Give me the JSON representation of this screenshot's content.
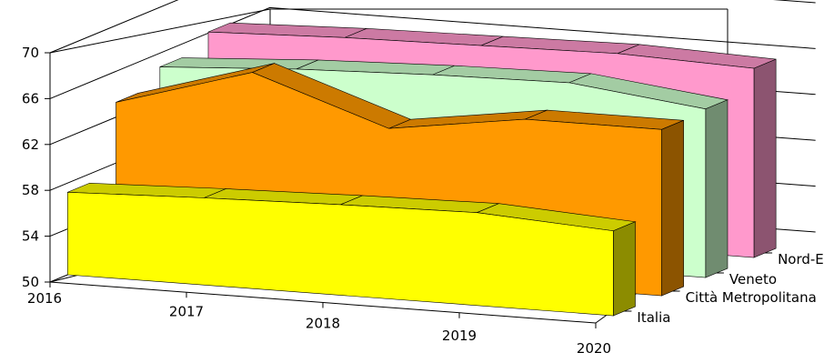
{
  "chart_data": {
    "type": "area",
    "subtype": "3d-area",
    "title": "",
    "xlabel": "",
    "ylabel": "",
    "x": [
      "2016",
      "2017",
      "2018",
      "2019",
      "2020"
    ],
    "y_ticks": [
      "50",
      "54",
      "58",
      "62",
      "66",
      "70"
    ],
    "ylim": [
      50,
      70
    ],
    "grid": true,
    "legend": "none",
    "series": [
      {
        "name": "Italia",
        "color": "#ffff00",
        "values": [
          57.2,
          57.6,
          57.9,
          58.1,
          57.4
        ]
      },
      {
        "name": "Città Metropolitana",
        "color": "#ff9900",
        "values": [
          63.3,
          66.8,
          62.8,
          64.5,
          64.5
        ]
      },
      {
        "name": "Veneto",
        "color": "#ccffcc",
        "values": [
          64.8,
          65.5,
          65.9,
          66.1,
          64.7
        ]
      },
      {
        "name": "Nord-Est",
        "color": "#ff99cc",
        "values": [
          66.1,
          66.5,
          66.7,
          66.9,
          66.5
        ]
      }
    ]
  }
}
